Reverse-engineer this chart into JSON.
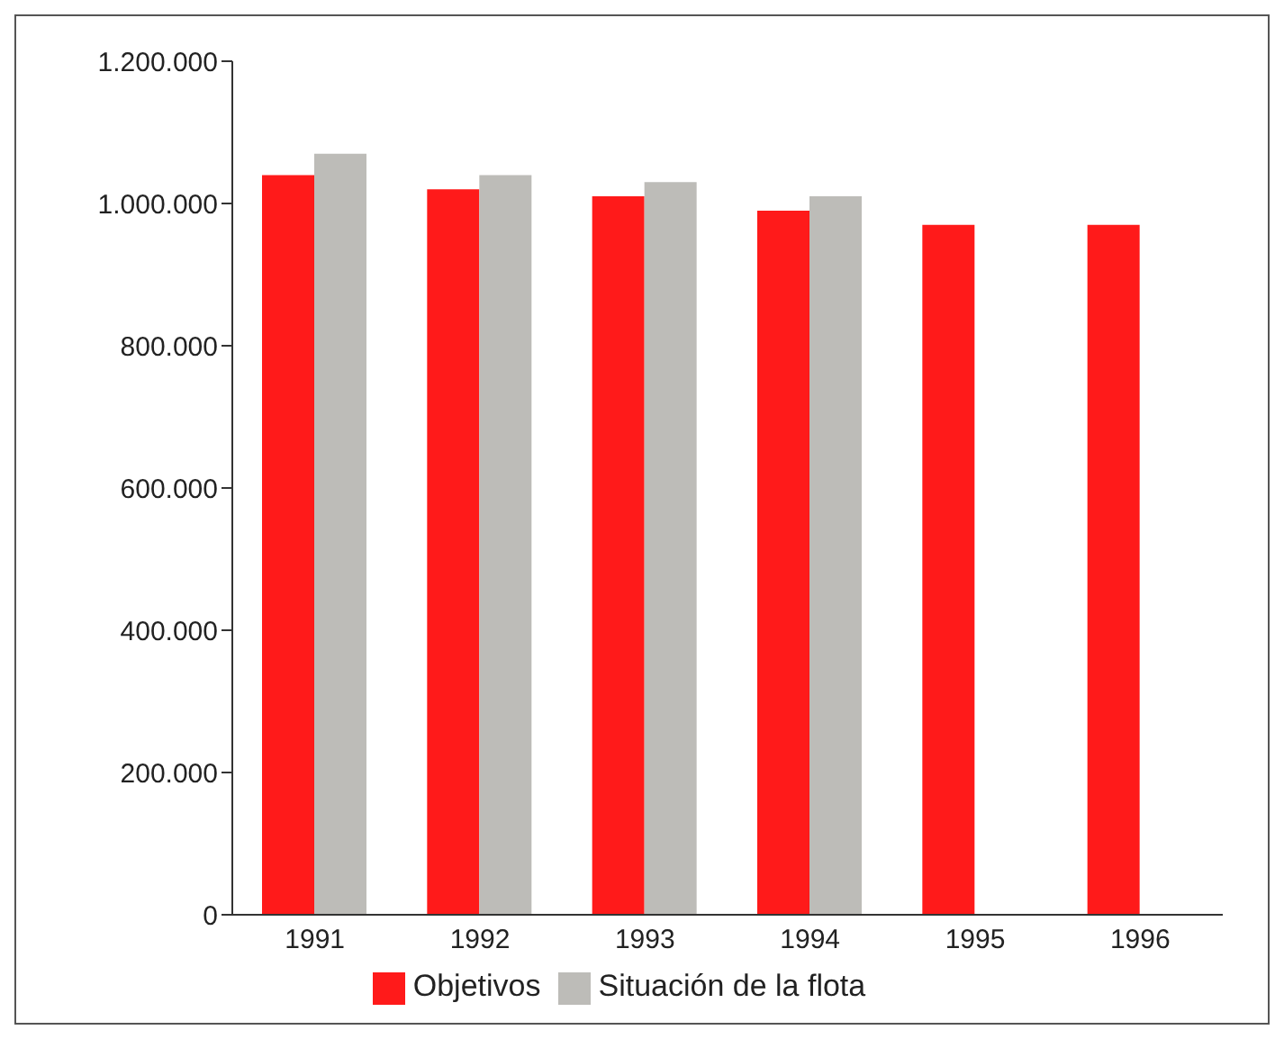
{
  "chart_data": {
    "type": "bar",
    "categories": [
      "1991",
      "1992",
      "1993",
      "1994",
      "1995",
      "1996"
    ],
    "series": [
      {
        "name": "Objetivos",
        "color": "#ff1a1a",
        "values": [
          1040000,
          1020000,
          1010000,
          990000,
          970000,
          970000
        ]
      },
      {
        "name": "Situación de la flota",
        "color": "#bdbcb8",
        "values": [
          1070000,
          1040000,
          1030000,
          1010000,
          null,
          null
        ]
      }
    ],
    "ylim": [
      0,
      1200000
    ],
    "yticks": [
      0,
      {
        "value": 200000,
        "label": "200.000"
      },
      {
        "value": 400000,
        "label": "400.000"
      },
      {
        "value": 600000,
        "label": "600.000"
      },
      {
        "value": 800000,
        "label": "800.000"
      },
      {
        "value": 1000000,
        "label": "1.000.000"
      },
      {
        "value": 1200000,
        "label": "1.200.000"
      }
    ],
    "grid": false,
    "legend": "bottom"
  }
}
